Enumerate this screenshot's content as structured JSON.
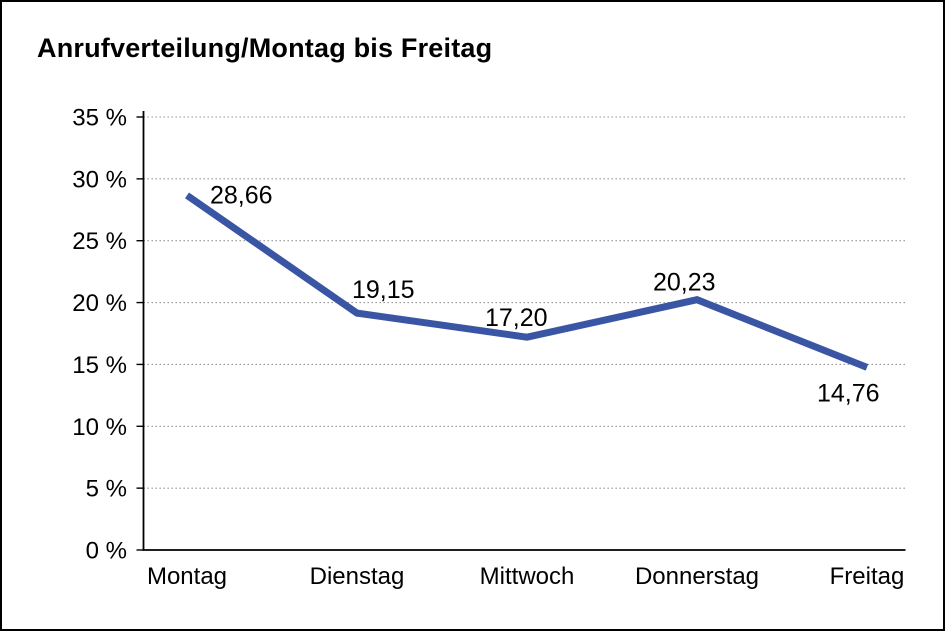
{
  "chart_data": {
    "type": "line",
    "title": "Anrufverteilung/Montag bis Freitag",
    "categories": [
      "Montag",
      "Dienstag",
      "Mittwoch",
      "Donnerstag",
      "Freitag"
    ],
    "values": [
      28.66,
      19.15,
      17.2,
      20.23,
      14.76
    ],
    "value_labels": [
      "28,66",
      "19,15",
      "17,20",
      "20,23",
      "14,76"
    ],
    "y_tick_labels": [
      "35 %",
      "30 %",
      "25 %",
      "20 %",
      "15 %",
      "10 %",
      "5 %",
      "0 %"
    ],
    "y_tick_values": [
      35,
      30,
      25,
      20,
      15,
      10,
      5,
      0
    ],
    "ylim": [
      0,
      35
    ],
    "y_step": 5,
    "xlabel": "",
    "ylabel": "",
    "legend": "none",
    "grid": "horizontal-dotted",
    "line_color": "#3a55a4",
    "grid_color": "#8c8c8c",
    "axis_color": "#000000",
    "text_color": "#000000",
    "background_color": "#ffffff"
  }
}
